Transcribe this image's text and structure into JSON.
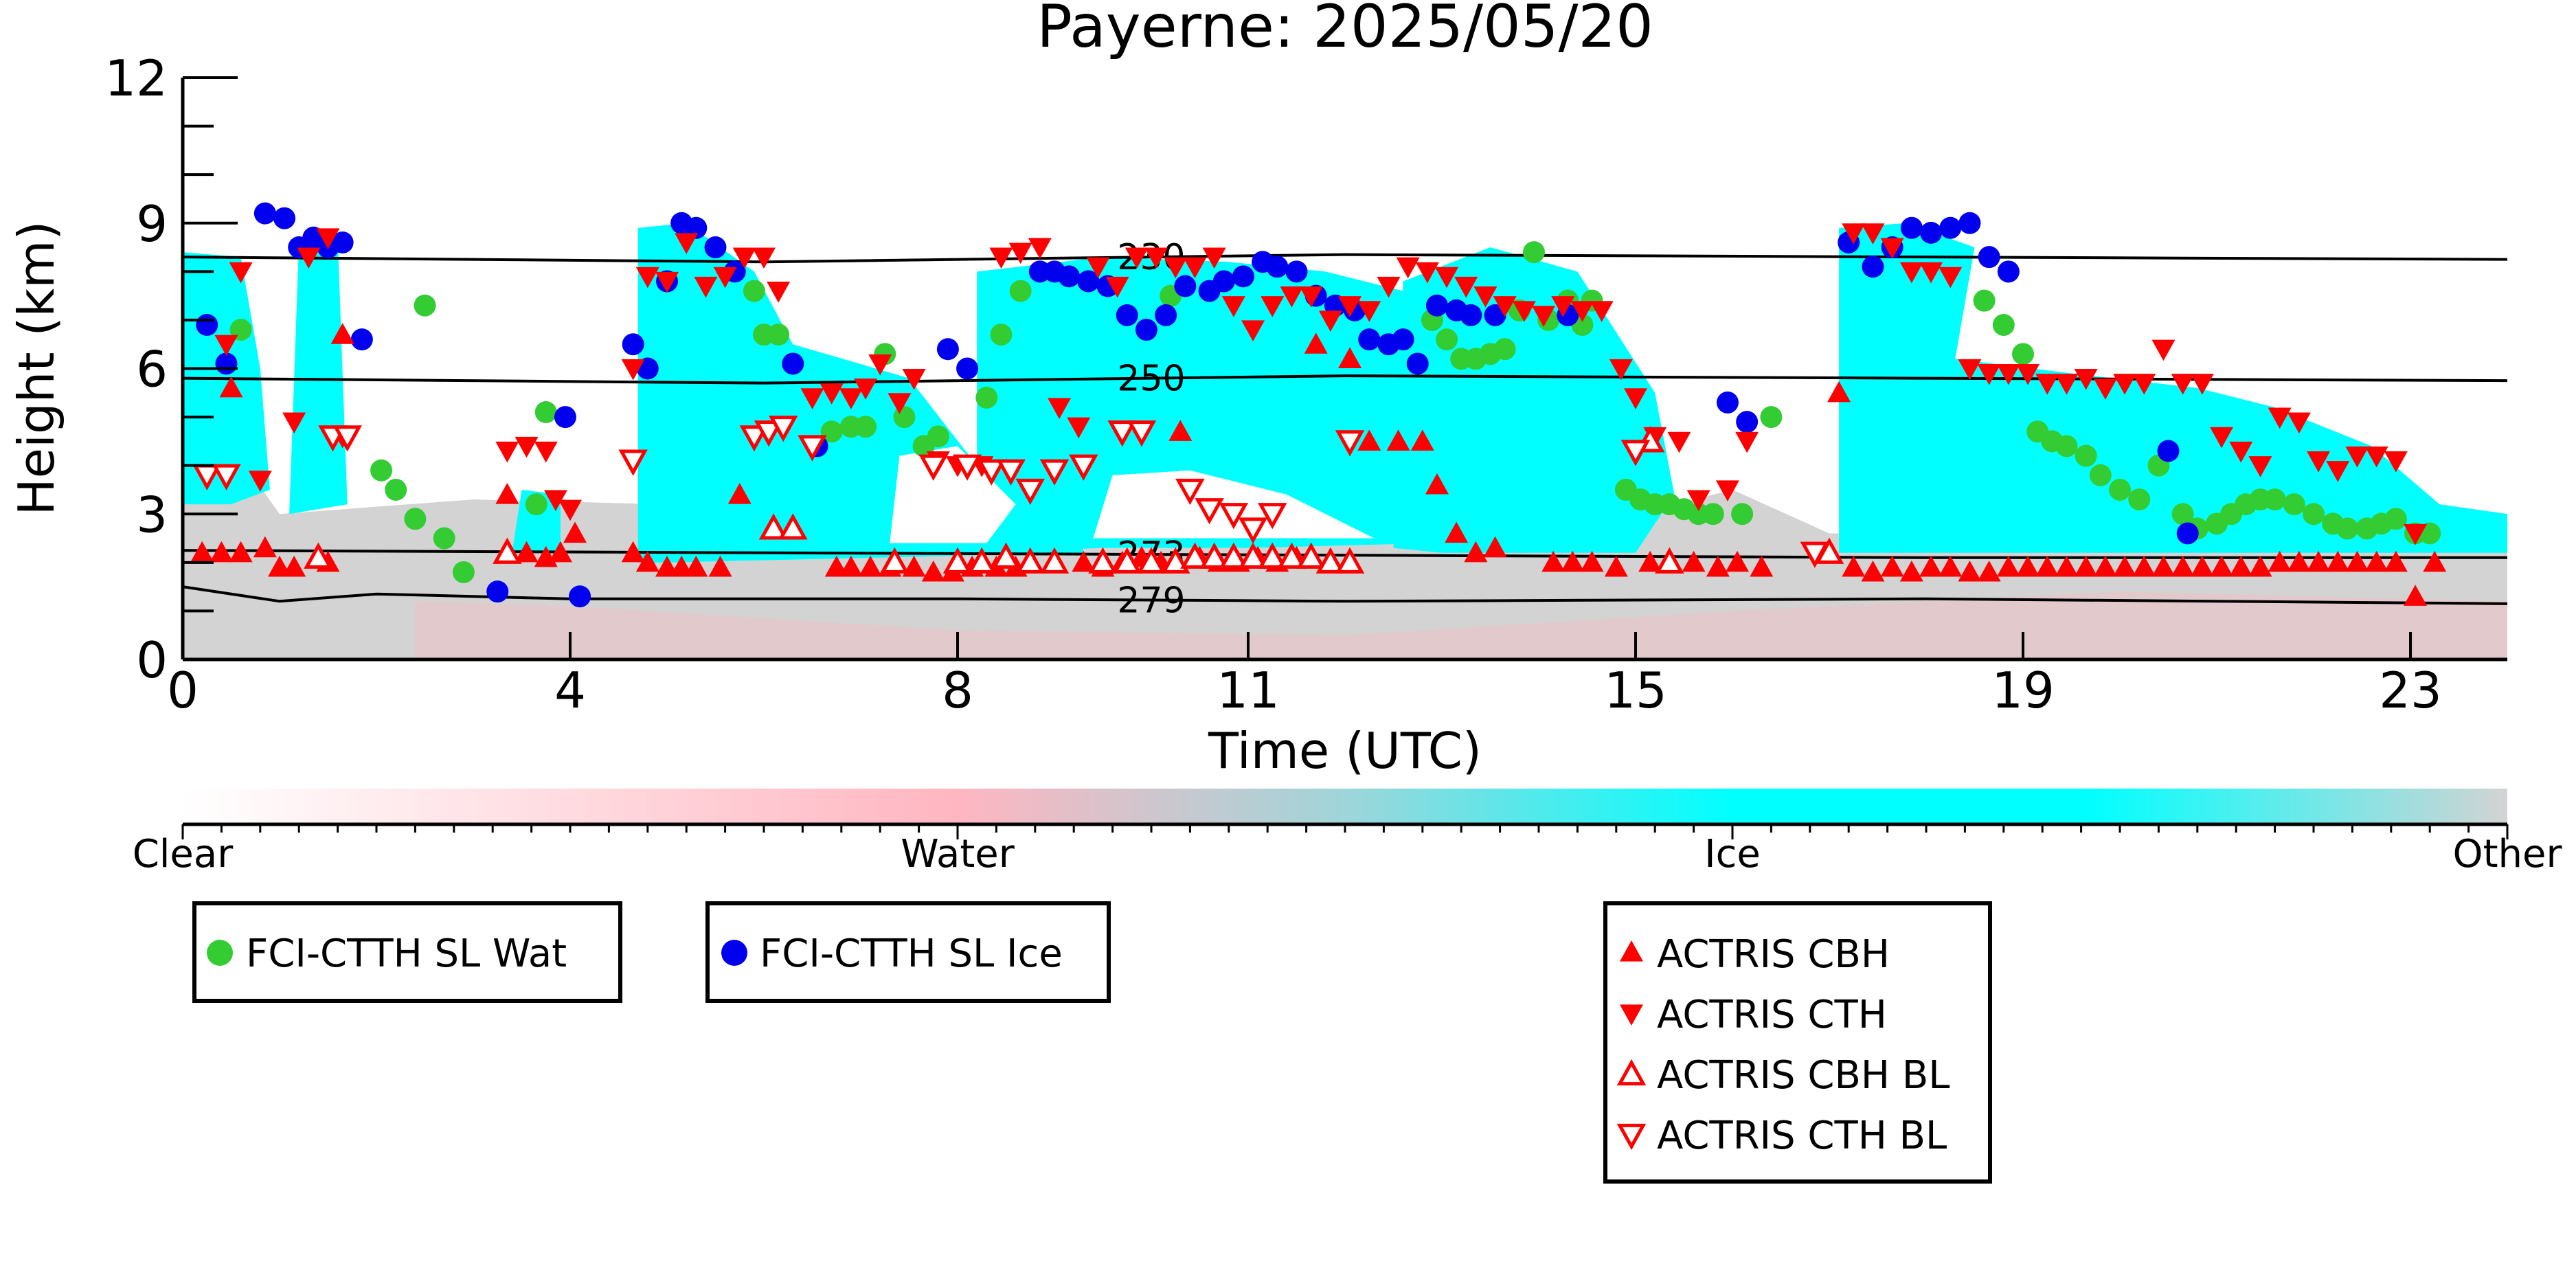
{
  "chart_data": {
    "type": "scatter",
    "title": "Payerne: 2025/05/20",
    "xlabel": "Time (UTC)",
    "ylabel": "Height (km)",
    "xlim": [
      0,
      24
    ],
    "ylim": [
      0,
      12
    ],
    "x_ticks": [
      0,
      4,
      8,
      11,
      15,
      19,
      23
    ],
    "y_ticks": [
      0,
      3,
      6,
      9,
      12
    ],
    "grid": false,
    "background": {
      "description_classes": [
        "Clear",
        "Water",
        "Ice",
        "Other"
      ],
      "colorbar_labels": [
        "Clear",
        "Water",
        "Ice",
        "Other"
      ],
      "colorbar_colors": [
        "#ffffff",
        "#ffb6c1",
        "#00ffff",
        "#d3d3d3"
      ],
      "other_color": "#d3d3d3",
      "ice_color": "#00ffff",
      "water_color": "#ffb6c1"
    },
    "isotherms": [
      {
        "label": "230",
        "x": [
          0,
          6,
          12,
          18,
          24
        ],
        "y": [
          8.3,
          8.2,
          8.35,
          8.3,
          8.25
        ]
      },
      {
        "label": "250",
        "x": [
          0,
          6,
          12,
          18,
          24
        ],
        "y": [
          5.8,
          5.7,
          5.85,
          5.8,
          5.75
        ]
      },
      {
        "label": "273",
        "x": [
          0,
          6,
          12,
          18,
          24
        ],
        "y": [
          2.25,
          2.2,
          2.15,
          2.1,
          2.1
        ]
      },
      {
        "label": "279",
        "x": [
          0,
          1,
          2,
          4,
          8,
          12,
          18,
          24
        ],
        "y": [
          1.5,
          1.2,
          1.35,
          1.25,
          1.25,
          1.2,
          1.25,
          1.15
        ]
      }
    ],
    "isotherm_label_x": 10,
    "series": [
      {
        "name": "FCI-CTTH SL Wat",
        "marker": "circle",
        "color": "#33cc33",
        "x": [
          0.6,
          2.5,
          2.05,
          2.2,
          2.4,
          2.7,
          2.9,
          3.75,
          3.65,
          5.9,
          6.0,
          6.15,
          6.7,
          6.9,
          7.05,
          7.25,
          7.45,
          7.65,
          7.8,
          8.3,
          8.45,
          8.65,
          10.2,
          12.9,
          13.05,
          13.2,
          13.35,
          13.5,
          13.65,
          13.8,
          13.95,
          14.1,
          14.3,
          14.45,
          14.55,
          14.9,
          15.05,
          15.2,
          15.35,
          15.5,
          15.65,
          15.8,
          16.1,
          16.4,
          18.6,
          18.8,
          19.0,
          19.15,
          19.3,
          19.45,
          19.65,
          19.8,
          20.0,
          20.2,
          20.4,
          20.65,
          20.8,
          21.0,
          21.15,
          21.3,
          21.45,
          21.6,
          21.8,
          22.0,
          22.2,
          22.35,
          22.55,
          22.7,
          22.85,
          23.05,
          23.2
        ],
        "y": [
          6.8,
          7.3,
          3.9,
          3.5,
          2.9,
          2.5,
          1.8,
          5.1,
          3.2,
          7.6,
          6.7,
          6.7,
          4.7,
          4.8,
          4.8,
          6.3,
          5.0,
          4.4,
          4.6,
          5.4,
          6.7,
          7.6,
          7.5,
          7.0,
          6.6,
          6.2,
          6.2,
          6.3,
          6.4,
          7.2,
          8.4,
          7.0,
          7.4,
          6.9,
          7.4,
          3.5,
          3.3,
          3.2,
          3.2,
          3.1,
          3.0,
          3.0,
          3.0,
          5.0,
          7.4,
          6.9,
          6.3,
          4.7,
          4.5,
          4.4,
          4.2,
          3.8,
          3.5,
          3.3,
          4.0,
          3.0,
          2.7,
          2.8,
          3.0,
          3.2,
          3.3,
          3.3,
          3.2,
          3.0,
          2.8,
          2.7,
          2.7,
          2.8,
          2.9,
          2.6,
          2.6
        ]
      },
      {
        "name": "FCI-CTTH SL Ice",
        "marker": "circle",
        "color": "#0000ee",
        "x": [
          0.25,
          0.45,
          0.85,
          1.05,
          1.2,
          1.35,
          1.5,
          1.65,
          1.85,
          3.25,
          3.95,
          4.1,
          4.65,
          4.8,
          5.0,
          5.15,
          5.3,
          5.5,
          5.7,
          6.3,
          6.55,
          7.9,
          8.1,
          8.85,
          9.0,
          9.15,
          9.35,
          9.55,
          9.75,
          9.95,
          10.15,
          10.35,
          10.6,
          10.75,
          10.95,
          11.15,
          11.3,
          11.5,
          11.7,
          11.9,
          12.1,
          12.25,
          12.45,
          12.6,
          12.75,
          12.95,
          13.15,
          13.3,
          13.55,
          14.3,
          15.95,
          16.15,
          17.2,
          17.45,
          17.65,
          17.85,
          18.05,
          18.25,
          18.45,
          18.65,
          18.85,
          20.5,
          20.7
        ],
        "y": [
          6.9,
          6.1,
          9.2,
          9.1,
          8.5,
          8.7,
          8.5,
          8.6,
          6.6,
          1.4,
          5.0,
          1.3,
          6.5,
          6.0,
          7.8,
          9.0,
          8.9,
          8.5,
          8.0,
          6.1,
          4.4,
          6.4,
          6.0,
          8.0,
          8.0,
          7.9,
          7.8,
          7.7,
          7.1,
          6.8,
          7.1,
          7.7,
          7.6,
          7.8,
          7.9,
          8.2,
          8.1,
          8.0,
          7.5,
          7.3,
          7.2,
          6.6,
          6.5,
          6.6,
          6.1,
          7.3,
          7.2,
          7.1,
          7.1,
          7.1,
          5.3,
          4.9,
          8.6,
          8.1,
          8.5,
          8.9,
          8.8,
          8.9,
          9.0,
          8.3,
          8.0,
          4.3,
          2.6
        ]
      },
      {
        "name": "ACTRIS CBH",
        "marker": "triangle-up",
        "color": "#ff0000",
        "filled": true,
        "x": [
          0.2,
          0.4,
          0.5,
          0.6,
          0.85,
          1.0,
          1.15,
          1.5,
          1.65,
          3.35,
          3.55,
          3.75,
          3.9,
          4.05,
          4.65,
          4.8,
          5.0,
          5.15,
          5.3,
          5.55,
          5.75,
          6.75,
          6.9,
          7.1,
          7.3,
          7.55,
          7.75,
          7.95,
          8.15,
          8.4,
          8.6,
          9.0,
          9.3,
          9.5,
          9.7,
          9.9,
          10.1,
          10.3,
          10.5,
          10.7,
          10.9,
          11.1,
          11.3,
          11.5,
          11.7,
          12.05,
          12.25,
          12.55,
          12.8,
          12.95,
          13.15,
          13.35,
          13.55,
          14.15,
          14.35,
          14.55,
          14.8,
          15.15,
          15.35,
          15.6,
          15.85,
          16.05,
          16.3,
          17.1,
          17.25,
          17.45,
          17.65,
          17.85,
          18.05,
          18.25,
          18.45,
          18.65,
          18.85,
          19.05,
          19.25,
          19.45,
          19.65,
          19.85,
          20.05,
          20.25,
          20.45,
          20.65,
          20.85,
          21.05,
          21.25,
          21.45,
          21.65,
          21.85,
          22.05,
          22.25,
          22.45,
          22.65,
          22.85,
          23.05,
          23.25
        ],
        "y": [
          2.2,
          2.2,
          5.6,
          2.2,
          2.3,
          1.9,
          1.9,
          2.0,
          6.7,
          3.4,
          2.2,
          2.1,
          2.2,
          2.6,
          2.2,
          2.0,
          1.9,
          1.9,
          1.9,
          1.9,
          3.4,
          1.9,
          1.9,
          1.9,
          1.9,
          1.9,
          1.8,
          1.8,
          1.9,
          1.9,
          1.9,
          2.0,
          2.0,
          1.9,
          2.0,
          2.1,
          2.0,
          4.7,
          2.1,
          2.0,
          2.0,
          2.1,
          2.0,
          2.1,
          6.5,
          6.2,
          4.5,
          4.5,
          4.5,
          3.6,
          2.6,
          2.2,
          2.3,
          2.0,
          2.0,
          2.0,
          1.9,
          2.0,
          2.0,
          2.0,
          1.9,
          2.0,
          1.9,
          5.5,
          1.9,
          1.8,
          1.9,
          1.8,
          1.9,
          1.9,
          1.8,
          1.8,
          1.9,
          1.9,
          1.9,
          1.9,
          1.9,
          1.9,
          1.9,
          1.9,
          1.9,
          1.9,
          1.9,
          1.9,
          1.9,
          1.9,
          2.0,
          2.0,
          2.0,
          2.0,
          2.0,
          2.0,
          2.0,
          1.3,
          2.0
        ]
      },
      {
        "name": "ACTRIS CTH",
        "marker": "triangle-down",
        "color": "#ff0000",
        "filled": true,
        "x": [
          0.45,
          0.6,
          0.8,
          1.15,
          1.3,
          1.5,
          1.65,
          3.35,
          3.55,
          3.75,
          3.85,
          4.0,
          4.65,
          4.8,
          5.0,
          5.2,
          5.4,
          5.6,
          5.8,
          6.0,
          6.15,
          6.5,
          6.7,
          6.9,
          7.05,
          7.2,
          7.4,
          7.55,
          7.8,
          8.0,
          8.25,
          8.45,
          8.65,
          8.85,
          9.05,
          9.25,
          9.45,
          9.65,
          9.85,
          10.05,
          10.25,
          10.45,
          10.65,
          10.85,
          11.05,
          11.25,
          11.45,
          11.65,
          11.85,
          12.05,
          12.25,
          12.45,
          12.65,
          12.85,
          13.05,
          13.25,
          13.45,
          13.65,
          13.85,
          14.05,
          14.25,
          14.45,
          14.65,
          14.85,
          15.0,
          15.2,
          15.45,
          15.65,
          15.95,
          16.15,
          17.25,
          17.45,
          17.65,
          17.85,
          18.05,
          18.25,
          18.45,
          18.65,
          18.85,
          19.05,
          19.25,
          19.45,
          19.65,
          19.85,
          20.05,
          20.25,
          20.45,
          20.65,
          20.85,
          21.05,
          21.25,
          21.45,
          21.65,
          21.85,
          22.05,
          22.25,
          22.45,
          22.65,
          22.85,
          23.05
        ],
        "y": [
          6.5,
          8.0,
          3.7,
          4.9,
          8.3,
          8.7,
          4.6,
          4.3,
          4.4,
          4.3,
          3.3,
          3.1,
          6.0,
          7.9,
          7.8,
          8.6,
          7.7,
          7.9,
          8.3,
          8.3,
          7.6,
          5.4,
          5.5,
          5.4,
          5.6,
          6.1,
          5.3,
          5.8,
          4.1,
          4.0,
          4.0,
          8.3,
          8.4,
          8.5,
          5.2,
          4.8,
          8.1,
          7.7,
          8.3,
          8.3,
          8.1,
          8.1,
          8.3,
          7.3,
          6.8,
          7.3,
          7.5,
          7.5,
          7.0,
          7.3,
          7.2,
          7.7,
          8.1,
          8.0,
          7.9,
          7.7,
          7.5,
          7.3,
          7.2,
          7.1,
          7.3,
          7.2,
          7.2,
          6.0,
          5.4,
          4.6,
          4.5,
          3.3,
          3.5,
          4.5,
          8.8,
          8.8,
          8.5,
          8.0,
          8.0,
          7.9,
          6.0,
          5.9,
          5.9,
          5.9,
          5.7,
          5.7,
          5.8,
          5.6,
          5.7,
          5.7,
          6.4,
          5.7,
          5.7,
          4.6,
          4.3,
          4.0,
          5.0,
          4.9,
          4.1,
          3.9,
          4.2,
          4.2,
          4.1,
          2.6
        ]
      },
      {
        "name": "ACTRIS CBH BL",
        "marker": "triangle-up",
        "color": "#ff0000",
        "filled": false,
        "x": [
          1.4,
          3.35,
          6.1,
          6.3,
          7.35,
          8.0,
          8.25,
          8.5,
          8.75,
          9.0,
          9.5,
          9.75,
          10.0,
          10.25,
          10.45,
          10.65,
          10.85,
          11.05,
          11.25,
          11.45,
          11.65,
          11.85,
          12.05,
          15.15,
          15.35,
          17.0
        ],
        "y": [
          2.1,
          2.2,
          2.7,
          2.7,
          2.0,
          2.0,
          2.0,
          2.1,
          2.0,
          2.0,
          2.0,
          2.0,
          2.0,
          2.0,
          2.1,
          2.1,
          2.1,
          2.1,
          2.1,
          2.1,
          2.1,
          2.0,
          2.0,
          4.5,
          2.0,
          2.2
        ]
      },
      {
        "name": "ACTRIS CTH BL",
        "marker": "triangle-down",
        "color": "#ff0000",
        "filled": false,
        "x": [
          0.25,
          0.45,
          1.55,
          1.7,
          4.65,
          5.9,
          6.05,
          6.2,
          6.5,
          7.75,
          8.1,
          8.35,
          8.55,
          8.75,
          9.0,
          9.3,
          9.7,
          9.9,
          10.4,
          10.6,
          10.85,
          11.05,
          11.25,
          12.05,
          15.0,
          16.85
        ],
        "y": [
          3.8,
          3.8,
          4.6,
          4.6,
          4.1,
          4.6,
          4.7,
          4.8,
          4.4,
          4.0,
          4.0,
          3.9,
          3.9,
          3.5,
          3.9,
          4.0,
          4.7,
          4.7,
          3.5,
          3.1,
          3.0,
          2.7,
          3.0,
          4.5,
          4.3,
          2.2
        ]
      }
    ]
  },
  "legends": {
    "box1": {
      "label": "FCI-CTTH SL Wat"
    },
    "box2": {
      "label": "FCI-CTTH SL Ice"
    },
    "box3": {
      "items": [
        "ACTRIS CBH",
        "ACTRIS CTH",
        "ACTRIS CBH BL",
        "ACTRIS CTH BL"
      ]
    }
  }
}
